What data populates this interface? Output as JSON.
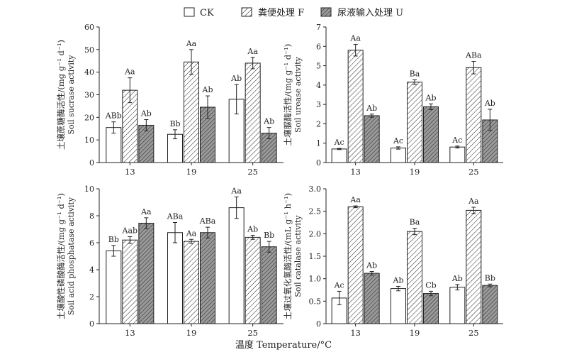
{
  "legend": {
    "items": [
      {
        "label": "CK",
        "pattern": "white"
      },
      {
        "label": "粪便处理 F",
        "pattern": "hatch-light"
      },
      {
        "label": "尿液输入处理 U",
        "pattern": "hatch-dark"
      }
    ]
  },
  "xaxis_label": "温度 Temperature/°C",
  "colors": {
    "stroke": "#222222",
    "hatch_dark_fill": "#9a9a9a",
    "background": "#ffffff"
  },
  "chart_data": [
    {
      "type": "bar",
      "id": "sucrase",
      "ylabel_cn": "土壤蔗糖酶活性/(mg g",
      "ylabel_unit": "⁻¹ d⁻¹)",
      "ylabel_en": "Soil sucrase activity",
      "ylim": [
        0,
        60
      ],
      "yticks": [
        "0",
        "10",
        "20",
        "30",
        "40",
        "50",
        "60"
      ],
      "categories": [
        "13",
        "19",
        "25"
      ],
      "series": [
        {
          "name": "CK",
          "values": [
            15.5,
            12.5,
            28
          ],
          "errors": [
            2.5,
            2,
            6.5
          ],
          "labels": [
            "ABb",
            "Bb",
            "Ab"
          ]
        },
        {
          "name": "粪便处理 F",
          "values": [
            32,
            44.5,
            44
          ],
          "errors": [
            5.5,
            5.5,
            2.5
          ],
          "labels": [
            "Aa",
            "Aa",
            "Aa"
          ]
        },
        {
          "name": "尿液输入处理 U",
          "values": [
            16.5,
            24.5,
            13
          ],
          "errors": [
            2.5,
            5,
            2.5
          ],
          "labels": [
            "Ab",
            "Ab",
            "Ab"
          ]
        }
      ]
    },
    {
      "type": "bar",
      "id": "urease",
      "ylabel_cn": "土壤脲酶活性/(mg g",
      "ylabel_unit": "⁻¹ d⁻¹)",
      "ylabel_en": "Soil urease activity",
      "ylim": [
        0,
        7
      ],
      "yticks": [
        "0",
        "1",
        "2",
        "3",
        "4",
        "5",
        "6",
        "7"
      ],
      "categories": [
        "13",
        "19",
        "25"
      ],
      "series": [
        {
          "name": "CK",
          "values": [
            0.7,
            0.75,
            0.8
          ],
          "errors": [
            0.03,
            0.06,
            0.05
          ],
          "labels": [
            "Ac",
            "Ac",
            "Ac"
          ]
        },
        {
          "name": "粪便处理 F",
          "values": [
            5.8,
            4.15,
            4.9
          ],
          "errors": [
            0.3,
            0.12,
            0.32
          ],
          "labels": [
            "Aa",
            "Ba",
            "ABa"
          ]
        },
        {
          "name": "尿液输入处理 U",
          "values": [
            2.42,
            2.88,
            2.2
          ],
          "errors": [
            0.08,
            0.15,
            0.55
          ],
          "labels": [
            "Ab",
            "Ab",
            "Ab"
          ]
        }
      ]
    },
    {
      "type": "bar",
      "id": "acid-phosphatase",
      "ylabel_cn": "土壤酸性磷酸酶活性/(mg g",
      "ylabel_unit": "⁻¹ d⁻¹)",
      "ylabel_en": "Soil acid phosphatase activity",
      "ylim": [
        0,
        10
      ],
      "yticks": [
        "0",
        "2",
        "4",
        "6",
        "8",
        "10"
      ],
      "categories": [
        "13",
        "19",
        "25"
      ],
      "series": [
        {
          "name": "CK",
          "values": [
            5.4,
            6.75,
            8.6
          ],
          "errors": [
            0.4,
            0.75,
            0.8
          ],
          "labels": [
            "Bb",
            "ABa",
            "Aa"
          ]
        },
        {
          "name": "粪便处理 F",
          "values": [
            6.2,
            6.1,
            6.4
          ],
          "errors": [
            0.25,
            0.15,
            0.15
          ],
          "labels": [
            "Aab",
            "Aa",
            "Ab"
          ]
        },
        {
          "name": "尿液输入处理 U",
          "values": [
            7.45,
            6.75,
            5.7
          ],
          "errors": [
            0.4,
            0.4,
            0.4
          ],
          "labels": [
            "Aa",
            "ABa",
            "Bb"
          ]
        }
      ]
    },
    {
      "type": "bar",
      "id": "catalase",
      "ylabel_cn": "土壤过氧化氢酶活性/(mL g",
      "ylabel_unit": "⁻¹ h⁻¹)",
      "ylabel_en": "Soil catalase activity",
      "ylim": [
        0,
        3
      ],
      "yticks": [
        "0",
        "0.5",
        "1.0",
        "1.5",
        "2.0",
        "2.5",
        "3.0"
      ],
      "categories": [
        "13",
        "19",
        "25"
      ],
      "series": [
        {
          "name": "CK",
          "values": [
            0.57,
            0.78,
            0.81
          ],
          "errors": [
            0.15,
            0.05,
            0.06
          ],
          "labels": [
            "Ac",
            "Ab",
            "Ab"
          ]
        },
        {
          "name": "粪便处理 F",
          "values": [
            2.6,
            2.05,
            2.52
          ],
          "errors": [
            0.02,
            0.07,
            0.07
          ],
          "labels": [
            "Aa",
            "Ba",
            "Aa"
          ]
        },
        {
          "name": "尿液输入处理 U",
          "values": [
            1.12,
            0.67,
            0.85
          ],
          "errors": [
            0.04,
            0.05,
            0.03
          ],
          "labels": [
            "Ab",
            "Cb",
            "Bb"
          ]
        }
      ]
    }
  ]
}
